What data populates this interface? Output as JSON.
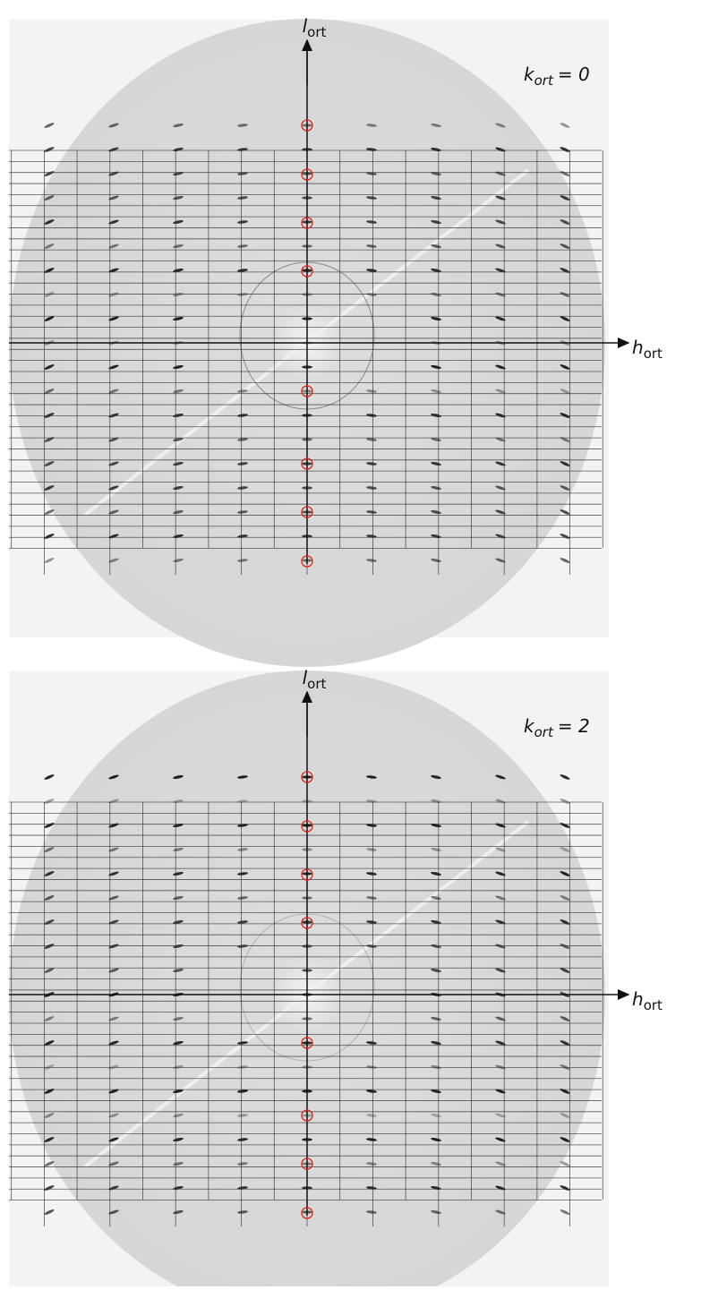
{
  "panels": [
    {
      "vertical_axis": {
        "symbol": "l",
        "subscript": "ort"
      },
      "horizontal_axis": {
        "symbol": "h",
        "subscript": "ort"
      },
      "slice_label": {
        "symbol": "k",
        "subscript": "ort",
        "rest": "= 0"
      }
    },
    {
      "vertical_axis": {
        "symbol": "l",
        "subscript": "ort"
      },
      "horizontal_axis": {
        "symbol": "h",
        "subscript": "ort"
      },
      "slice_label": {
        "symbol": "k",
        "subscript": "ort",
        "rest": "= 2"
      }
    }
  ]
}
